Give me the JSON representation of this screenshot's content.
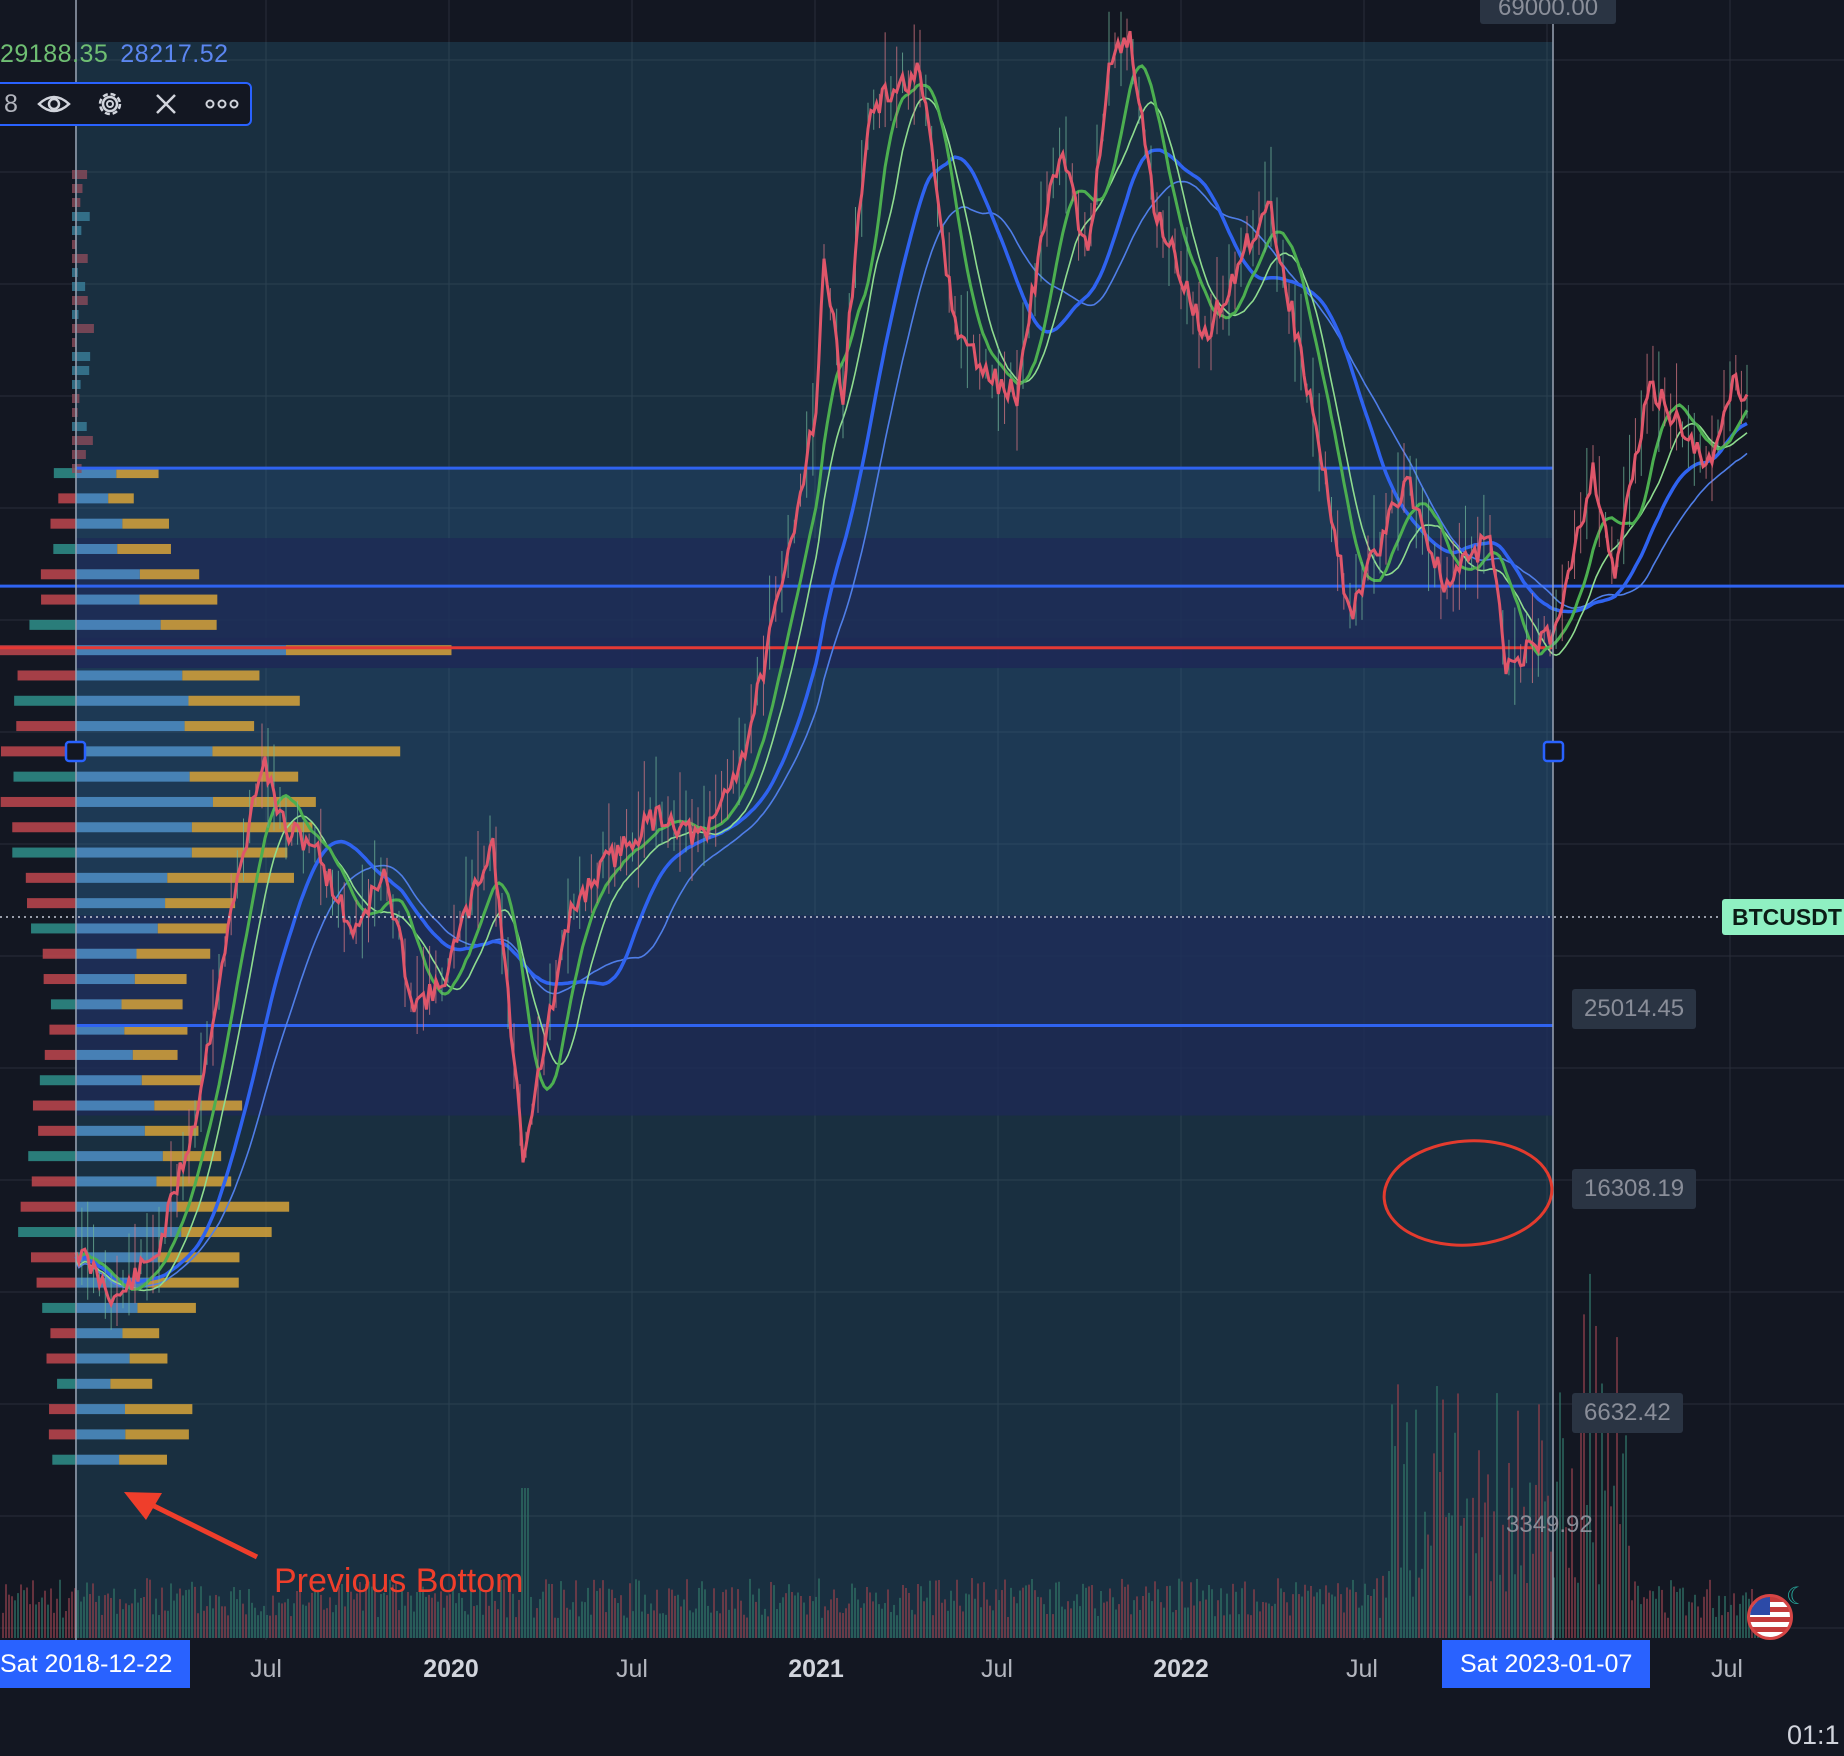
{
  "legend": {
    "value_green": "29188.35",
    "value_blue": "28217.52"
  },
  "toolbar": {
    "number": "8",
    "icons": [
      "eye-icon",
      "gear-icon",
      "close-icon",
      "more-icon"
    ]
  },
  "price_labels": {
    "top": "69000.00",
    "upper": "25014.45",
    "poc": "16308.19",
    "lower": "6632.42",
    "bottom": "3349.92"
  },
  "symbol": "BTCUSDT",
  "annotation": "Previous Bottom",
  "x_axis": {
    "start_pill": "Sat 2018-12-22",
    "end_pill": "Sat 2023-01-07",
    "ticks": [
      {
        "label": "Jul",
        "bold": false
      },
      {
        "label": "2020",
        "bold": true
      },
      {
        "label": "Jul",
        "bold": false
      },
      {
        "label": "2021",
        "bold": true
      },
      {
        "label": "Jul",
        "bold": false
      },
      {
        "label": "2022",
        "bold": true
      },
      {
        "label": "Jul",
        "bold": false
      },
      {
        "label": "Jul",
        "bold": false
      }
    ]
  },
  "clock": "01:1",
  "chart_data": {
    "type": "line",
    "symbol": "BTCUSDT",
    "x_start": "2018-12-22",
    "x_end": "2023-07-20",
    "price_log_scale": true,
    "range": {
      "start": "2018-12-22",
      "end": "2023-01-07",
      "high": 69000.0,
      "low": 3349.92
    },
    "levels": {
      "value_area_high": 25014.45,
      "point_of_control": 16308.19,
      "value_area_low": 6632.42
    },
    "price": [
      [
        "2018-12-22",
        3900
      ],
      [
        "2019-02-01",
        3450
      ],
      [
        "2019-03-15",
        3900
      ],
      [
        "2019-04-20",
        5300
      ],
      [
        "2019-05-20",
        8000
      ],
      [
        "2019-06-26",
        12500
      ],
      [
        "2019-07-20",
        10500
      ],
      [
        "2019-08-15",
        10300
      ],
      [
        "2019-09-25",
        8300
      ],
      [
        "2019-10-26",
        9500
      ],
      [
        "2019-11-25",
        7000
      ],
      [
        "2019-12-20",
        7200
      ],
      [
        "2020-02-12",
        10300
      ],
      [
        "2020-03-13",
        4900
      ],
      [
        "2020-04-30",
        8700
      ],
      [
        "2020-06-01",
        9700
      ],
      [
        "2020-07-27",
        11000
      ],
      [
        "2020-09-10",
        10300
      ],
      [
        "2020-10-21",
        12800
      ],
      [
        "2020-11-30",
        19500
      ],
      [
        "2020-12-31",
        29000
      ],
      [
        "2021-01-08",
        41000
      ],
      [
        "2021-01-27",
        30000
      ],
      [
        "2021-02-21",
        57000
      ],
      [
        "2021-03-13",
        61000
      ],
      [
        "2021-04-14",
        64000
      ],
      [
        "2021-05-19",
        35000
      ],
      [
        "2021-06-22",
        31000
      ],
      [
        "2021-07-20",
        29800
      ],
      [
        "2021-08-22",
        49000
      ],
      [
        "2021-09-07",
        52000
      ],
      [
        "2021-09-29",
        41000
      ],
      [
        "2021-10-20",
        66000
      ],
      [
        "2021-11-10",
        69000
      ],
      [
        "2021-12-04",
        47000
      ],
      [
        "2022-01-24",
        34000
      ],
      [
        "2022-03-28",
        47500
      ],
      [
        "2022-05-12",
        28500
      ],
      [
        "2022-06-18",
        17600
      ],
      [
        "2022-08-14",
        24500
      ],
      [
        "2022-09-20",
        18800
      ],
      [
        "2022-11-05",
        21300
      ],
      [
        "2022-11-21",
        15600
      ],
      [
        "2023-01-07",
        16900
      ],
      [
        "2023-02-16",
        24800
      ],
      [
        "2023-03-10",
        19600
      ],
      [
        "2023-04-14",
        30500
      ],
      [
        "2023-06-15",
        25000
      ],
      [
        "2023-07-06",
        31000
      ],
      [
        "2023-07-20",
        29800
      ]
    ],
    "volume_profile": {
      "rows": 40,
      "peak_price": 16308.19
    }
  }
}
